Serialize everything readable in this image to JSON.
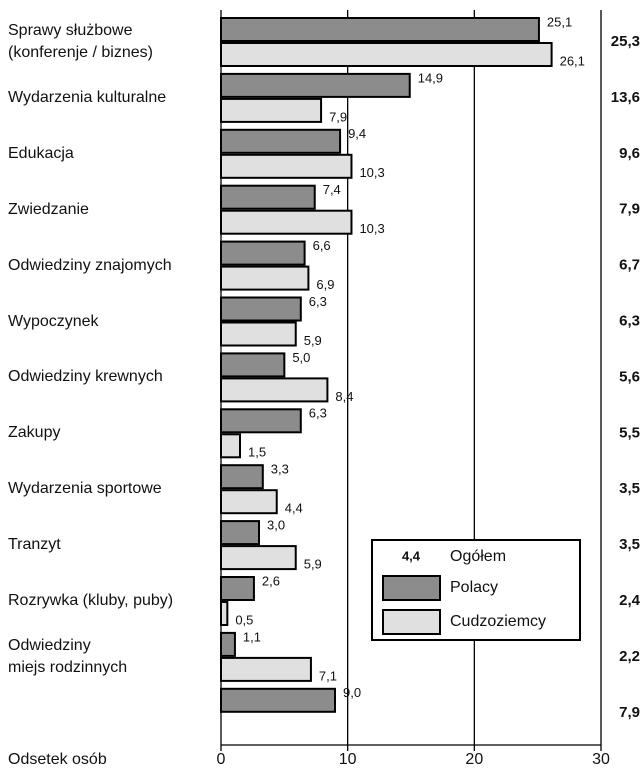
{
  "chart_data": {
    "type": "hbar",
    "categories": [
      "Sprawy służbowe\n(konferenje / biznes)",
      "Wydarzenia kulturalne",
      "Edukacja",
      "Zwiedzanie",
      "Odwiedziny znajomych",
      "Wypoczynek",
      "Odwiedziny krewnych",
      "Zakupy",
      "Wydarzenia sportowe",
      "Tranzyt",
      "Rozrywka (kluby, puby)",
      "Odwiedziny\nmiejs rodzinnych",
      null
    ],
    "series": [
      {
        "name": "Polacy",
        "color": "#8c8c8c",
        "values": [
          25.1,
          14.9,
          9.4,
          7.4,
          6.6,
          6.3,
          5.0,
          6.3,
          3.3,
          3.0,
          2.6,
          1.1,
          9.0
        ],
        "value_labels": [
          "25,1",
          "14,9",
          "9,4",
          "7,4",
          "6,6",
          "6,3",
          "5,0",
          "6,3",
          "3,3",
          "3,0",
          "2,6",
          "1,1",
          "9,0"
        ]
      },
      {
        "name": "Cudzoziemcy",
        "color": "#e0e0e0",
        "values": [
          26.1,
          7.9,
          10.3,
          10.3,
          6.9,
          5.9,
          8.4,
          1.5,
          4.4,
          5.9,
          0.5,
          7.1,
          null
        ],
        "value_labels": [
          "26,1",
          "7,9",
          "10,3",
          "10,3",
          "6,9",
          "5,9",
          "8,4",
          "1,5",
          "4,4",
          "5,9",
          "0,5",
          "7,1",
          null
        ]
      }
    ],
    "totals": {
      "name": "Ogółem",
      "values": [
        25.3,
        13.6,
        9.6,
        7.9,
        6.7,
        6.3,
        5.6,
        5.5,
        3.5,
        3.5,
        2.4,
        2.2,
        7.9
      ],
      "value_labels": [
        "25,3",
        "13,6",
        "9,6",
        "7,9",
        "6,7",
        "6,3",
        "5,6",
        "5,5",
        "3,5",
        "3,5",
        "2,4",
        "2,2",
        "7,9"
      ],
      "legend_sample": "4,4"
    },
    "xlabel": "Odsetek osób",
    "xlim": [
      0,
      30
    ],
    "xticks": [
      0,
      10,
      20,
      30
    ],
    "grid": true
  }
}
